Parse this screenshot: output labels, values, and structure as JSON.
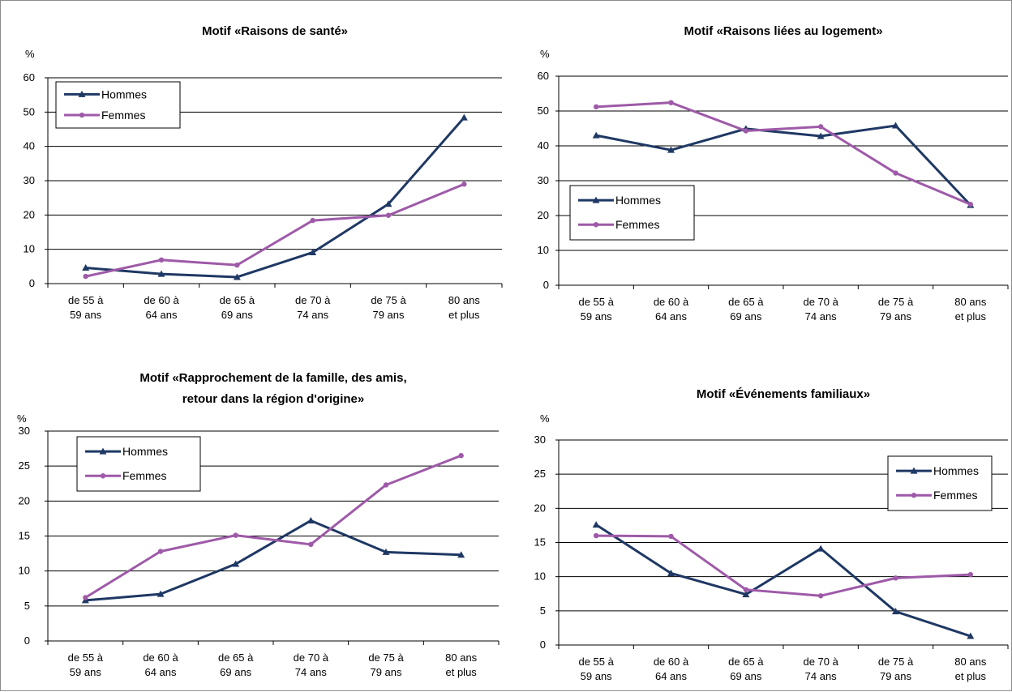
{
  "colors": {
    "hommes": "#1f3864",
    "femmes": "#9e5aa8",
    "grid": "#000000"
  },
  "chart_data": [
    {
      "type": "line",
      "title_lines": [
        "Motif «Raisons de santé»"
      ],
      "unit": "%",
      "categories": [
        [
          "de 55 à",
          "59 ans"
        ],
        [
          "de 60 à",
          "64 ans"
        ],
        [
          "de 65 à",
          "69 ans"
        ],
        [
          "de 70 à",
          "74 ans"
        ],
        [
          "de 75 à",
          "79 ans"
        ],
        [
          "80 ans",
          "et plus"
        ]
      ],
      "ylim": [
        0,
        60
      ],
      "yticks": [
        0,
        10,
        20,
        30,
        40,
        50,
        60
      ],
      "grid": true,
      "legend_position": "top-left",
      "series": [
        {
          "name": "Hommes",
          "marker": "triangle",
          "values": [
            4.6,
            2.8,
            1.9,
            9.1,
            23.2,
            48.4
          ]
        },
        {
          "name": "Femmes",
          "marker": "circle",
          "values": [
            2.1,
            6.9,
            5.4,
            18.4,
            19.9,
            29.0
          ]
        }
      ]
    },
    {
      "type": "line",
      "title_lines": [
        "Motif «Raisons liées au logement»"
      ],
      "unit": "%",
      "categories": [
        [
          "de 55 à",
          "59 ans"
        ],
        [
          "de 60 à",
          "64 ans"
        ],
        [
          "de 65 à",
          "69 ans"
        ],
        [
          "de 70 à",
          "74 ans"
        ],
        [
          "de 75 à",
          "79 ans"
        ],
        [
          "80 ans",
          "et plus"
        ]
      ],
      "ylim": [
        0,
        60
      ],
      "yticks": [
        0,
        10,
        20,
        30,
        40,
        50,
        60
      ],
      "grid": true,
      "legend_position": "bottom-left",
      "series": [
        {
          "name": "Hommes",
          "marker": "triangle",
          "values": [
            43.0,
            38.8,
            44.9,
            42.8,
            45.8,
            23.0
          ]
        },
        {
          "name": "Femmes",
          "marker": "circle",
          "values": [
            51.2,
            52.4,
            44.3,
            45.5,
            32.2,
            23.2
          ]
        }
      ]
    },
    {
      "type": "line",
      "title_lines": [
        "Motif «Rapprochement de la famille, des amis,",
        "retour dans la région d'origine»"
      ],
      "unit": "%",
      "categories": [
        [
          "de 55 à",
          "59 ans"
        ],
        [
          "de 60 à",
          "64 ans"
        ],
        [
          "de 65 à",
          "69 ans"
        ],
        [
          "de 70 à",
          "74 ans"
        ],
        [
          "de 75 à",
          "79 ans"
        ],
        [
          "80 ans",
          "et plus"
        ]
      ],
      "ylim": [
        0,
        30
      ],
      "yticks": [
        0,
        5,
        10,
        15,
        20,
        25,
        30
      ],
      "grid": true,
      "legend_position": "top-left",
      "series": [
        {
          "name": "Hommes",
          "marker": "triangle",
          "values": [
            5.8,
            6.7,
            11.0,
            17.2,
            12.7,
            12.3
          ]
        },
        {
          "name": "Femmes",
          "marker": "circle",
          "values": [
            6.2,
            12.8,
            15.1,
            13.8,
            22.3,
            26.5
          ]
        }
      ]
    },
    {
      "type": "line",
      "title_lines": [
        "Motif «Événements familiaux»"
      ],
      "unit": "%",
      "categories": [
        [
          "de 55 à",
          "59 ans"
        ],
        [
          "de 60 à",
          "64 ans"
        ],
        [
          "de 65 à",
          "69 ans"
        ],
        [
          "de 70 à",
          "74 ans"
        ],
        [
          "de 75 à",
          "79 ans"
        ],
        [
          "80 ans",
          "et plus"
        ]
      ],
      "ylim": [
        0,
        30
      ],
      "yticks": [
        0,
        5,
        10,
        15,
        20,
        25,
        30
      ],
      "grid": true,
      "legend_position": "top-right",
      "series": [
        {
          "name": "Hommes",
          "marker": "triangle",
          "values": [
            17.6,
            10.5,
            7.4,
            14.1,
            4.9,
            1.3
          ]
        },
        {
          "name": "Femmes",
          "marker": "circle",
          "values": [
            16.0,
            15.9,
            8.1,
            7.2,
            9.8,
            10.3
          ]
        }
      ]
    }
  ]
}
